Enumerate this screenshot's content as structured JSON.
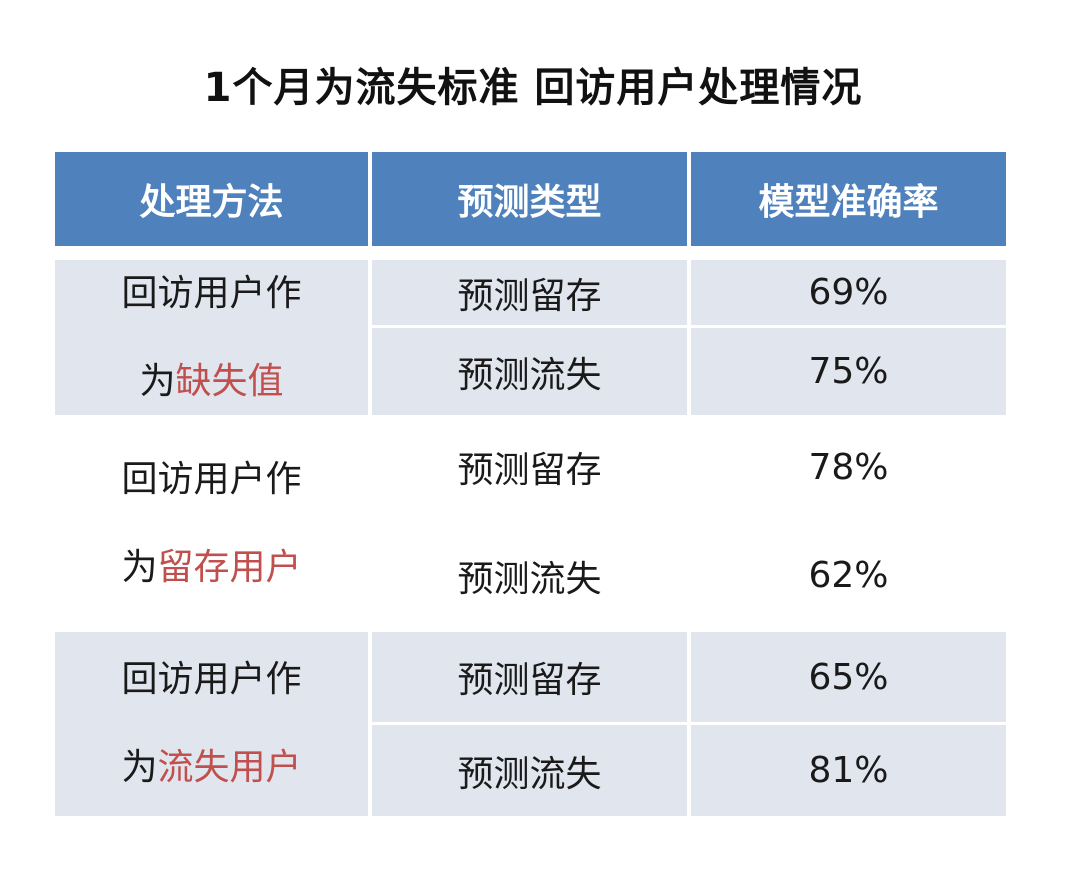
{
  "title": "1个月为流失标准  回访用户处理情况",
  "header": {
    "col1": "处理方法",
    "col2": "预测类型",
    "col3": "模型准确率"
  },
  "groups": [
    {
      "line1": "回访用户作",
      "line2_prefix": "为",
      "line2_highlight": "缺失值",
      "rows": [
        {
          "type": "预测留存",
          "accuracy": "69%"
        },
        {
          "type": "预测流失",
          "accuracy": "75%"
        }
      ]
    },
    {
      "line1": "回访用户作",
      "line2_prefix": "为",
      "line2_highlight": "留存用户",
      "rows": [
        {
          "type": "预测留存",
          "accuracy": "78%"
        },
        {
          "type": "预测流失",
          "accuracy": "62%"
        }
      ]
    },
    {
      "line1": "回访用户作",
      "line2_prefix": "为",
      "line2_highlight": "流失用户",
      "rows": [
        {
          "type": "预测留存",
          "accuracy": "65%"
        },
        {
          "type": "预测流失",
          "accuracy": "81%"
        }
      ]
    }
  ],
  "colors": {
    "header_bg": "#4f81bd",
    "row_shade": "#e1e5ee",
    "highlight": "#c0504d"
  }
}
